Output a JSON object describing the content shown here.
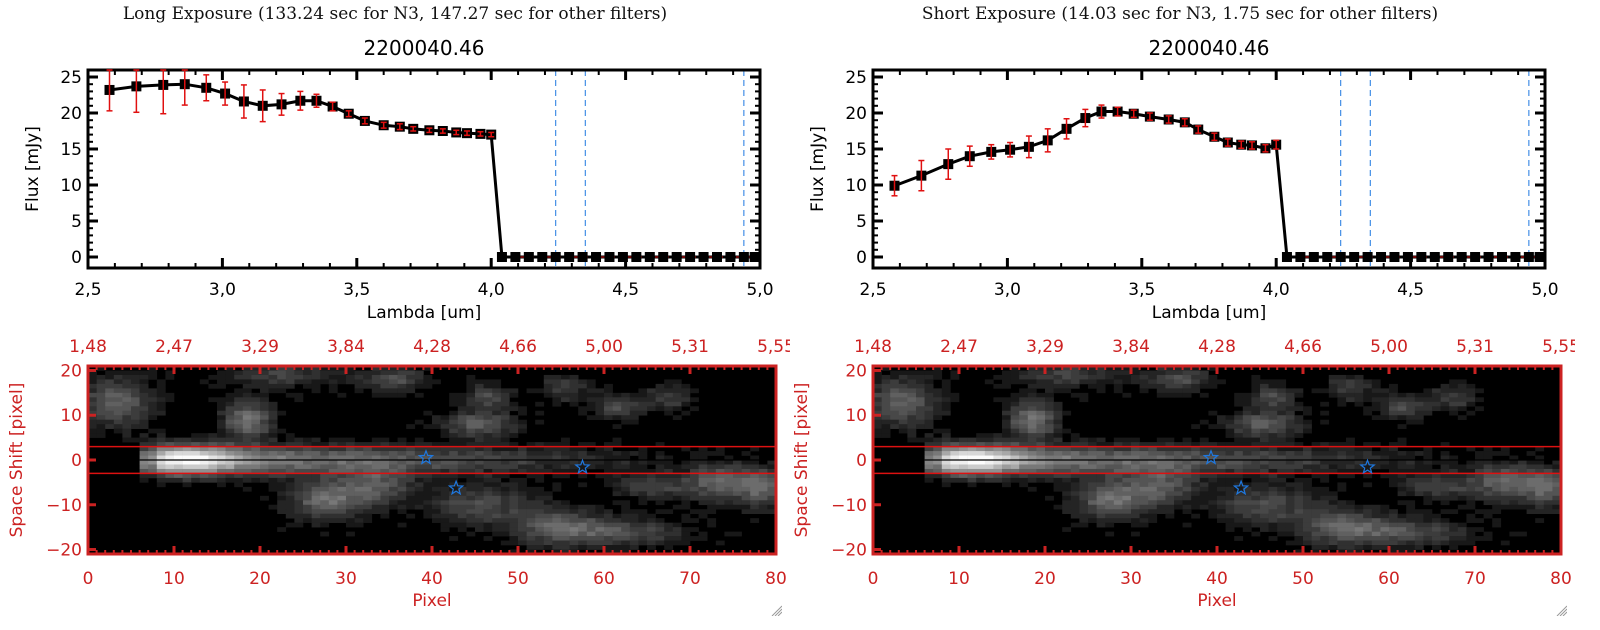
{
  "panels": [
    {
      "id": "long",
      "exposure_title": "Long Exposure (133.24 sec for N3, 147.27 sec for other filters)"
    },
    {
      "id": "short",
      "exposure_title": "Short Exposure (14.03 sec for N3, 1.75 sec for other filters)"
    }
  ],
  "colors": {
    "axis": "#000000",
    "errorbar": "#e01010",
    "image_axis": "#cc2222",
    "marker_line": "#1e78e0",
    "aperture": "#dd1111"
  },
  "chart_data": [
    {
      "type": "line",
      "title": "2200040.46",
      "xlabel": "Lambda [um]",
      "ylabel": "Flux [mJy]",
      "xlim": [
        2.5,
        5.0
      ],
      "ylim": [
        0,
        25
      ],
      "xticks": [
        "2.5",
        "3.0",
        "3.5",
        "4.0",
        "4.5",
        "5.0"
      ],
      "yticks": [
        "0",
        "5",
        "10",
        "15",
        "20",
        "25"
      ],
      "grid": false,
      "vlines": [
        4.24,
        4.35,
        4.94
      ],
      "hline": 0,
      "x": [
        2.58,
        2.68,
        2.78,
        2.86,
        2.94,
        3.01,
        3.08,
        3.15,
        3.22,
        3.29,
        3.35,
        3.41,
        3.47,
        3.53,
        3.6,
        3.66,
        3.71,
        3.77,
        3.82,
        3.87,
        3.91,
        3.96,
        4.0,
        4.04,
        4.09,
        4.14,
        4.19,
        4.24,
        4.29,
        4.34,
        4.39,
        4.44,
        4.49,
        4.54,
        4.59,
        4.64,
        4.69,
        4.74,
        4.79,
        4.84,
        4.89,
        4.94,
        4.98
      ],
      "y": [
        23.2,
        23.7,
        23.9,
        24.0,
        23.5,
        22.7,
        21.6,
        21.0,
        21.2,
        21.7,
        21.7,
        20.9,
        19.9,
        18.9,
        18.3,
        18.1,
        17.8,
        17.6,
        17.5,
        17.3,
        17.2,
        17.1,
        17.0,
        0,
        0,
        0,
        0,
        0,
        0,
        0,
        0,
        0,
        0,
        0,
        0,
        0,
        0,
        0,
        0,
        0,
        0,
        0,
        0
      ],
      "yerr": [
        2.9,
        3.6,
        4.0,
        2.9,
        1.8,
        1.6,
        2.3,
        2.2,
        1.5,
        1.3,
        0.9,
        0.6,
        0.4,
        0.4,
        0.4,
        0.4,
        0.3,
        0.3,
        0.3,
        0.3,
        0.3,
        0.3,
        0.3,
        0,
        0,
        0,
        0,
        0,
        0,
        0,
        0,
        0,
        0,
        0,
        0,
        0,
        0,
        0,
        0,
        0,
        0,
        0,
        0
      ]
    },
    {
      "type": "line",
      "title": "2200040.46",
      "xlabel": "Lambda [um]",
      "ylabel": "Flux [mJy]",
      "xlim": [
        2.5,
        5.0
      ],
      "ylim": [
        0,
        25
      ],
      "xticks": [
        "2.5",
        "3.0",
        "3.5",
        "4.0",
        "4.5",
        "5.0"
      ],
      "yticks": [
        "0",
        "5",
        "10",
        "15",
        "20",
        "25"
      ],
      "grid": false,
      "vlines": [
        4.24,
        4.35,
        4.94
      ],
      "hline": 0,
      "x": [
        2.58,
        2.68,
        2.78,
        2.86,
        2.94,
        3.01,
        3.08,
        3.15,
        3.22,
        3.29,
        3.35,
        3.41,
        3.47,
        3.53,
        3.6,
        3.66,
        3.71,
        3.77,
        3.82,
        3.87,
        3.91,
        3.96,
        4.0,
        4.04,
        4.09,
        4.14,
        4.19,
        4.24,
        4.29,
        4.34,
        4.39,
        4.44,
        4.49,
        4.54,
        4.59,
        4.64,
        4.69,
        4.74,
        4.79,
        4.84,
        4.89,
        4.94,
        4.98
      ],
      "y": [
        9.9,
        11.3,
        12.9,
        14.0,
        14.6,
        14.9,
        15.3,
        16.2,
        17.8,
        19.3,
        20.2,
        20.2,
        19.9,
        19.5,
        19.1,
        18.7,
        17.7,
        16.7,
        15.9,
        15.6,
        15.5,
        15.1,
        15.6,
        0,
        0,
        0,
        0,
        0,
        0,
        0,
        0,
        0,
        0,
        0,
        0,
        0,
        0,
        0,
        0,
        0,
        0,
        0,
        0
      ],
      "yerr": [
        1.4,
        2.1,
        2.1,
        1.4,
        1.0,
        1.0,
        1.5,
        1.6,
        1.4,
        1.2,
        0.9,
        0.6,
        0.5,
        0.5,
        0.5,
        0.5,
        0.5,
        0.5,
        0.5,
        0.5,
        0.5,
        0.5,
        0.6,
        0,
        0,
        0,
        0,
        0,
        0,
        0,
        0,
        0,
        0,
        0,
        0,
        0,
        0,
        0,
        0,
        0,
        0,
        0,
        0
      ]
    },
    {
      "type": "heatmap",
      "xlabel": "Pixel",
      "ylabel": "Space Shift [pixel]",
      "xlim": [
        0,
        80
      ],
      "ylim": [
        -21,
        21
      ],
      "xticks": [
        "0",
        "10",
        "20",
        "30",
        "40",
        "50",
        "60",
        "70",
        "80"
      ],
      "yticks": [
        "-20",
        "-10",
        "0",
        "10",
        "20"
      ],
      "top_axis_ticks": [
        "1.48",
        "2.47",
        "3.29",
        "3.84",
        "4.28",
        "4.66",
        "5.00",
        "5.31",
        "5.55"
      ],
      "aperture": [
        -3,
        3
      ],
      "center": 0,
      "stars": [
        [
          39.3,
          0.5
        ],
        [
          42.8,
          -6.3
        ],
        [
          57.5,
          -1.6
        ]
      ]
    },
    {
      "type": "heatmap",
      "xlabel": "Pixel",
      "ylabel": "Space Shift [pixel]",
      "xlim": [
        0,
        80
      ],
      "ylim": [
        -21,
        21
      ],
      "xticks": [
        "0",
        "10",
        "20",
        "30",
        "40",
        "50",
        "60",
        "70",
        "80"
      ],
      "yticks": [
        "-20",
        "-10",
        "0",
        "10",
        "20"
      ],
      "top_axis_ticks": [
        "1.48",
        "2.47",
        "3.29",
        "3.84",
        "4.28",
        "4.66",
        "5.00",
        "5.31",
        "5.55"
      ],
      "aperture": [
        -3,
        3
      ],
      "center": 0,
      "stars": [
        [
          39.3,
          0.5
        ],
        [
          42.8,
          -6.3
        ],
        [
          57.5,
          -1.6
        ]
      ]
    }
  ]
}
